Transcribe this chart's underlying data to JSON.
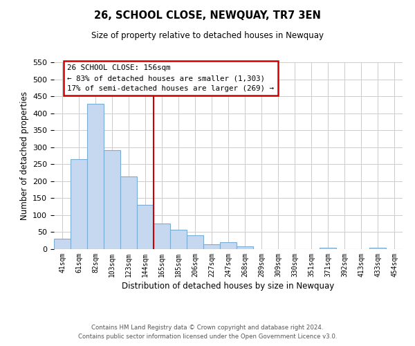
{
  "title": "26, SCHOOL CLOSE, NEWQUAY, TR7 3EN",
  "subtitle": "Size of property relative to detached houses in Newquay",
  "xlabel": "Distribution of detached houses by size in Newquay",
  "ylabel": "Number of detached properties",
  "bar_color": "#c5d8ef",
  "bar_edge_color": "#7aadd4",
  "categories": [
    "41sqm",
    "61sqm",
    "82sqm",
    "103sqm",
    "123sqm",
    "144sqm",
    "165sqm",
    "185sqm",
    "206sqm",
    "227sqm",
    "247sqm",
    "268sqm",
    "289sqm",
    "309sqm",
    "330sqm",
    "351sqm",
    "371sqm",
    "392sqm",
    "413sqm",
    "433sqm",
    "454sqm"
  ],
  "values": [
    31,
    265,
    428,
    292,
    214,
    130,
    76,
    58,
    40,
    14,
    20,
    9,
    0,
    0,
    0,
    0,
    5,
    0,
    0,
    4,
    0
  ],
  "ylim": [
    0,
    550
  ],
  "yticks": [
    0,
    50,
    100,
    150,
    200,
    250,
    300,
    350,
    400,
    450,
    500,
    550
  ],
  "annotation_title": "26 SCHOOL CLOSE: 156sqm",
  "annotation_line1": "← 83% of detached houses are smaller (1,303)",
  "annotation_line2": "17% of semi-detached houses are larger (269) →",
  "vertical_line_index": 5.5,
  "footer_line1": "Contains HM Land Registry data © Crown copyright and database right 2024.",
  "footer_line2": "Contains public sector information licensed under the Open Government Licence v3.0.",
  "background_color": "#ffffff",
  "grid_color": "#cccccc",
  "annotation_box_color": "#ffffff",
  "annotation_border_color": "#cc0000",
  "vertical_line_color": "#cc0000"
}
